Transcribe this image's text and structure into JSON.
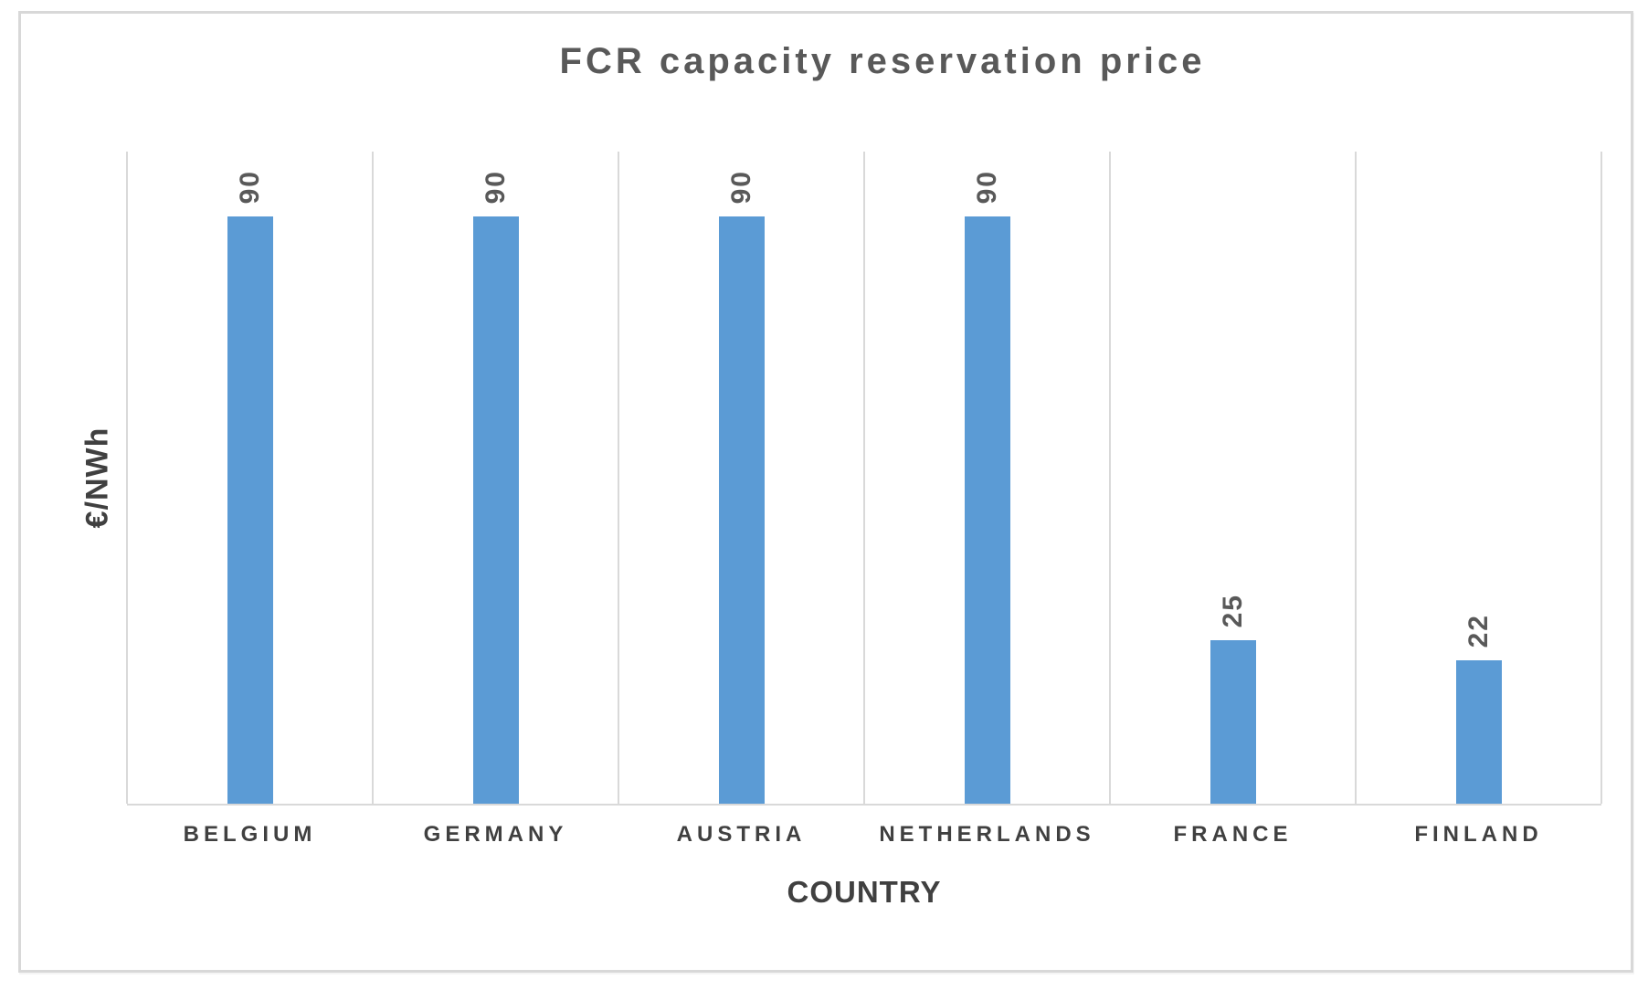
{
  "chart_data": {
    "type": "bar",
    "title": "FCR capacity reservation price",
    "xlabel": "COUNTRY",
    "ylabel": "€/NWh",
    "categories": [
      "BELGIUM",
      "GERMANY",
      "AUSTRIA",
      "NETHERLANDS",
      "FRANCE",
      "FINLAND"
    ],
    "values": [
      90,
      90,
      90,
      90,
      25,
      22
    ],
    "data_labels": [
      "90",
      "90",
      "90",
      "90",
      "25",
      "22"
    ],
    "ylim": [
      0,
      100
    ],
    "legend_position": "none",
    "grid": "vertical category gridlines only",
    "data_label_rotation": "rotated 90 degrees, reading bottom to top",
    "colors": {
      "bar": "#5B9BD5",
      "gridline": "#D9D9D9",
      "axis_line": "#D9D9D9",
      "title_text": "#595959",
      "data_label_text": "#595959",
      "axis_text": "#404040",
      "frame_border": "#D8D8D8",
      "background": "#FFFFFF"
    }
  }
}
